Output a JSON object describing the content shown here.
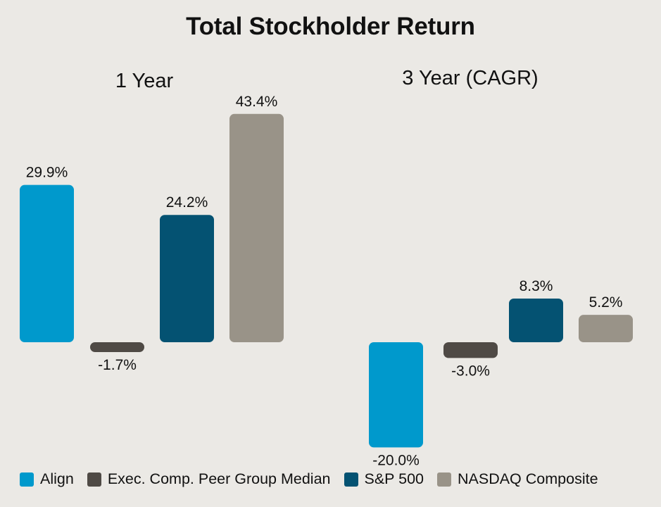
{
  "title": "Total Stockholder Return",
  "chart_data": [
    {
      "type": "bar",
      "title": "1 Year",
      "categories": [
        "Align",
        "Exec. Comp. Peer Group Median",
        "S&P 500",
        "NASDAQ Composite"
      ],
      "values": [
        29.9,
        -1.7,
        24.2,
        43.4
      ],
      "labels": [
        "29.9%",
        "-1.7%",
        "24.2%",
        "43.4%"
      ],
      "colors": [
        "#0099CC",
        "#4F4A45",
        "#045272",
        "#999388"
      ],
      "unit": "%",
      "grid": false
    },
    {
      "type": "bar",
      "title": "3 Year (CAGR)",
      "categories": [
        "Align",
        "Exec. Comp. Peer Group Median",
        "S&P 500",
        "NASDAQ Composite"
      ],
      "values": [
        -20.0,
        -3.0,
        8.3,
        5.2
      ],
      "labels": [
        "-20.0%",
        "-3.0%",
        "8.3%",
        "5.2%"
      ],
      "colors": [
        "#0099CC",
        "#4F4A45",
        "#045272",
        "#999388"
      ],
      "unit": "%",
      "grid": false
    }
  ],
  "legend": {
    "position": "bottom",
    "items": [
      {
        "label": "Align",
        "color": "#0099CC"
      },
      {
        "label": "Exec. Comp. Peer Group Median",
        "color": "#4F4A45"
      },
      {
        "label": "S&P 500",
        "color": "#045272"
      },
      {
        "label": "NASDAQ Composite",
        "color": "#999388"
      }
    ]
  }
}
